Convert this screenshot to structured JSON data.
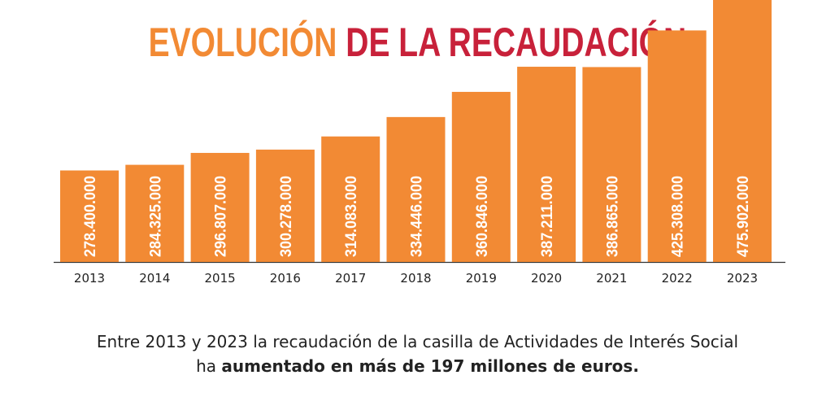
{
  "title_part1": "EVOLUCIÓN",
  "title_part2": "DE LA RECAUDACIÓN",
  "caption": {
    "line1": "Entre 2013 y 2023 la recaudación de la casilla de Actividades de Interés Social",
    "line2_prefix": "ha ",
    "line2_bold": "aumentado en más de 197 millones de euros."
  },
  "colors": {
    "bar": "#F28A34",
    "title_orange": "#F28A34",
    "title_red": "#C8213A",
    "axis": "#333333"
  },
  "chart_data": {
    "type": "bar",
    "categories": [
      "2013",
      "2014",
      "2015",
      "2016",
      "2017",
      "2018",
      "2019",
      "2020",
      "2021",
      "2022",
      "2023"
    ],
    "values": [
      278400000,
      284325000,
      296807000,
      300278000,
      314083000,
      334446000,
      360846000,
      387211000,
      386865000,
      425308000,
      475902000
    ],
    "value_labels": [
      "278.400.000",
      "284.325.000",
      "296.807.000",
      "300.278.000",
      "314.083.000",
      "334.446.000",
      "360.846.000",
      "387.211.000",
      "386.865.000",
      "425.308.000",
      "475.902.000"
    ],
    "grid": false,
    "legend": "none"
  }
}
